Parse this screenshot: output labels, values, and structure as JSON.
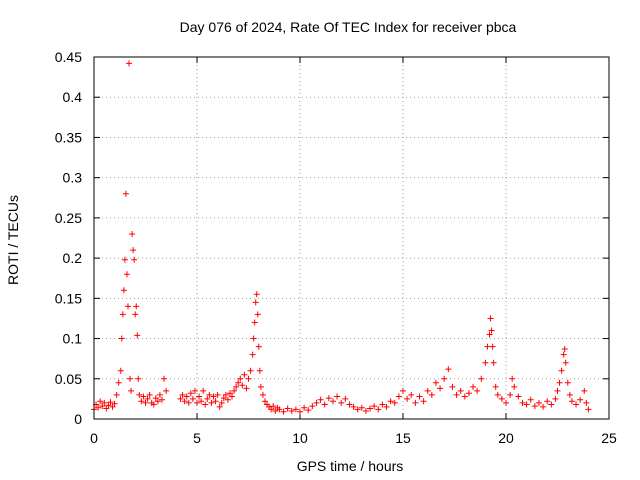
{
  "chart_data": {
    "type": "scatter",
    "title": "Day 076 of 2024, Rate Of TEC Index for receiver pbca",
    "xlabel": "GPS time / hours",
    "ylabel": "ROTI / TECUs",
    "xlim": [
      0,
      25
    ],
    "ylim": [
      0,
      0.45
    ],
    "xticks": [
      0,
      5,
      10,
      15,
      20,
      25
    ],
    "xtick_labels": [
      "0",
      "5",
      "10",
      "15",
      "20",
      "25"
    ],
    "yticks": [
      0,
      0.05,
      0.1,
      0.15,
      0.2,
      0.25,
      0.3,
      0.35,
      0.4,
      0.45
    ],
    "ytick_labels": [
      "0",
      "0.05",
      "0.1",
      "0.15",
      "0.2",
      "0.25",
      "0.3",
      "0.35",
      "0.4",
      "0.45"
    ],
    "grid": true,
    "marker": "+",
    "series": [
      {
        "name": "ROTI",
        "color": "#ff0000",
        "points": [
          [
            0.0,
            0.012
          ],
          [
            0.1,
            0.018
          ],
          [
            0.2,
            0.014
          ],
          [
            0.3,
            0.022
          ],
          [
            0.4,
            0.016
          ],
          [
            0.5,
            0.02
          ],
          [
            0.6,
            0.013
          ],
          [
            0.7,
            0.017
          ],
          [
            0.8,
            0.021
          ],
          [
            0.9,
            0.015
          ],
          [
            1.0,
            0.019
          ],
          [
            1.1,
            0.03
          ],
          [
            1.2,
            0.045
          ],
          [
            1.3,
            0.06
          ],
          [
            1.35,
            0.1
          ],
          [
            1.4,
            0.13
          ],
          [
            1.45,
            0.16
          ],
          [
            1.5,
            0.198
          ],
          [
            1.55,
            0.28
          ],
          [
            1.6,
            0.18
          ],
          [
            1.65,
            0.14
          ],
          [
            1.7,
            0.442
          ],
          [
            1.75,
            0.05
          ],
          [
            1.8,
            0.035
          ],
          [
            1.85,
            0.23
          ],
          [
            1.9,
            0.21
          ],
          [
            1.95,
            0.198
          ],
          [
            2.0,
            0.13
          ],
          [
            2.05,
            0.14
          ],
          [
            2.1,
            0.104
          ],
          [
            2.15,
            0.05
          ],
          [
            2.2,
            0.03
          ],
          [
            2.3,
            0.022
          ],
          [
            2.4,
            0.028
          ],
          [
            2.5,
            0.02
          ],
          [
            2.6,
            0.025
          ],
          [
            2.7,
            0.03
          ],
          [
            2.8,
            0.02
          ],
          [
            2.9,
            0.018
          ],
          [
            3.0,
            0.026
          ],
          [
            3.1,
            0.022
          ],
          [
            3.2,
            0.03
          ],
          [
            3.3,
            0.024
          ],
          [
            3.4,
            0.05
          ],
          [
            3.5,
            0.035
          ],
          [
            4.2,
            0.025
          ],
          [
            4.3,
            0.03
          ],
          [
            4.4,
            0.022
          ],
          [
            4.5,
            0.028
          ],
          [
            4.6,
            0.02
          ],
          [
            4.7,
            0.032
          ],
          [
            4.8,
            0.025
          ],
          [
            4.9,
            0.035
          ],
          [
            5.0,
            0.02
          ],
          [
            5.1,
            0.028
          ],
          [
            5.2,
            0.022
          ],
          [
            5.3,
            0.035
          ],
          [
            5.4,
            0.018
          ],
          [
            5.5,
            0.025
          ],
          [
            5.6,
            0.03
          ],
          [
            5.7,
            0.02
          ],
          [
            5.8,
            0.028
          ],
          [
            5.9,
            0.022
          ],
          [
            6.0,
            0.03
          ],
          [
            6.1,
            0.015
          ],
          [
            6.2,
            0.02
          ],
          [
            6.3,
            0.026
          ],
          [
            6.4,
            0.03
          ],
          [
            6.5,
            0.024
          ],
          [
            6.6,
            0.032
          ],
          [
            6.7,
            0.028
          ],
          [
            6.8,
            0.035
          ],
          [
            6.9,
            0.04
          ],
          [
            7.0,
            0.045
          ],
          [
            7.1,
            0.05
          ],
          [
            7.2,
            0.042
          ],
          [
            7.3,
            0.055
          ],
          [
            7.4,
            0.038
          ],
          [
            7.5,
            0.05
          ],
          [
            7.6,
            0.06
          ],
          [
            7.7,
            0.08
          ],
          [
            7.75,
            0.1
          ],
          [
            7.8,
            0.12
          ],
          [
            7.85,
            0.145
          ],
          [
            7.9,
            0.155
          ],
          [
            7.95,
            0.13
          ],
          [
            8.0,
            0.09
          ],
          [
            8.05,
            0.06
          ],
          [
            8.1,
            0.04
          ],
          [
            8.2,
            0.03
          ],
          [
            8.3,
            0.022
          ],
          [
            8.4,
            0.018
          ],
          [
            8.5,
            0.015
          ],
          [
            8.6,
            0.012
          ],
          [
            8.7,
            0.016
          ],
          [
            8.8,
            0.01
          ],
          [
            8.9,
            0.014
          ],
          [
            9.0,
            0.012
          ],
          [
            9.2,
            0.009
          ],
          [
            9.4,
            0.013
          ],
          [
            9.6,
            0.01
          ],
          [
            9.8,
            0.012
          ],
          [
            10.0,
            0.009
          ],
          [
            10.2,
            0.014
          ],
          [
            10.4,
            0.011
          ],
          [
            10.6,
            0.016
          ],
          [
            10.8,
            0.02
          ],
          [
            11.0,
            0.024
          ],
          [
            11.2,
            0.018
          ],
          [
            11.4,
            0.026
          ],
          [
            11.6,
            0.022
          ],
          [
            11.8,
            0.028
          ],
          [
            12.0,
            0.02
          ],
          [
            12.2,
            0.025
          ],
          [
            12.4,
            0.018
          ],
          [
            12.6,
            0.015
          ],
          [
            12.8,
            0.012
          ],
          [
            13.0,
            0.014
          ],
          [
            13.2,
            0.01
          ],
          [
            13.4,
            0.013
          ],
          [
            13.6,
            0.016
          ],
          [
            13.8,
            0.012
          ],
          [
            14.0,
            0.018
          ],
          [
            14.2,
            0.015
          ],
          [
            14.4,
            0.022
          ],
          [
            14.6,
            0.02
          ],
          [
            14.8,
            0.028
          ],
          [
            15.0,
            0.035
          ],
          [
            15.2,
            0.025
          ],
          [
            15.4,
            0.03
          ],
          [
            15.6,
            0.02
          ],
          [
            15.8,
            0.028
          ],
          [
            16.0,
            0.022
          ],
          [
            16.2,
            0.035
          ],
          [
            16.4,
            0.03
          ],
          [
            16.6,
            0.045
          ],
          [
            16.8,
            0.038
          ],
          [
            17.0,
            0.05
          ],
          [
            17.2,
            0.062
          ],
          [
            17.4,
            0.04
          ],
          [
            17.6,
            0.03
          ],
          [
            17.8,
            0.035
          ],
          [
            18.0,
            0.028
          ],
          [
            18.2,
            0.032
          ],
          [
            18.4,
            0.04
          ],
          [
            18.6,
            0.035
          ],
          [
            18.8,
            0.05
          ],
          [
            19.0,
            0.07
          ],
          [
            19.1,
            0.09
          ],
          [
            19.2,
            0.105
          ],
          [
            19.25,
            0.125
          ],
          [
            19.3,
            0.11
          ],
          [
            19.35,
            0.09
          ],
          [
            19.4,
            0.07
          ],
          [
            19.5,
            0.04
          ],
          [
            19.6,
            0.03
          ],
          [
            19.8,
            0.025
          ],
          [
            20.0,
            0.02
          ],
          [
            20.2,
            0.03
          ],
          [
            20.3,
            0.05
          ],
          [
            20.4,
            0.04
          ],
          [
            20.6,
            0.028
          ],
          [
            20.8,
            0.02
          ],
          [
            21.0,
            0.018
          ],
          [
            21.2,
            0.024
          ],
          [
            21.4,
            0.016
          ],
          [
            21.6,
            0.02
          ],
          [
            21.8,
            0.015
          ],
          [
            22.0,
            0.022
          ],
          [
            22.2,
            0.018
          ],
          [
            22.4,
            0.025
          ],
          [
            22.5,
            0.035
          ],
          [
            22.6,
            0.045
          ],
          [
            22.7,
            0.06
          ],
          [
            22.8,
            0.08
          ],
          [
            22.85,
            0.087
          ],
          [
            22.9,
            0.07
          ],
          [
            23.0,
            0.045
          ],
          [
            23.1,
            0.03
          ],
          [
            23.2,
            0.022
          ],
          [
            23.4,
            0.018
          ],
          [
            23.6,
            0.024
          ],
          [
            23.8,
            0.035
          ],
          [
            23.9,
            0.02
          ],
          [
            24.0,
            0.012
          ]
        ]
      }
    ]
  }
}
